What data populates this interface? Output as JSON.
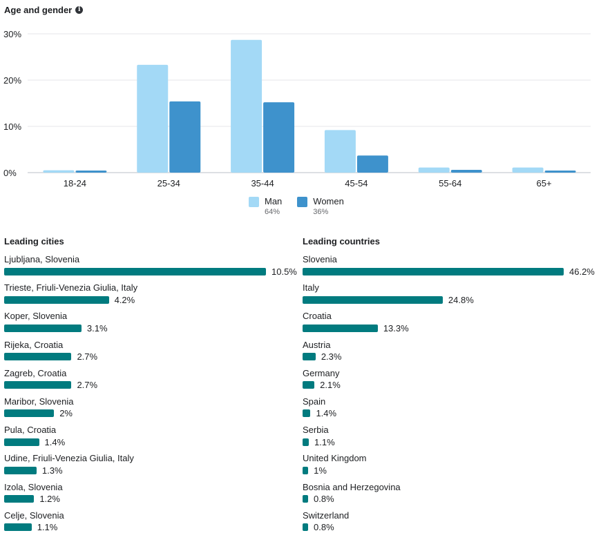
{
  "age_gender": {
    "title": "Age and gender",
    "info_icon": "info-icon",
    "legend": [
      {
        "label": "Man",
        "pct": "64%",
        "color": "#a3d9f6"
      },
      {
        "label": "Women",
        "pct": "36%",
        "color": "#3e92cc"
      }
    ]
  },
  "chart_data": [
    {
      "type": "bar",
      "title": "Age and gender",
      "categories": [
        "18-24",
        "25-34",
        "35-44",
        "45-54",
        "55-64",
        "65+"
      ],
      "series": [
        {
          "name": "Man",
          "values": [
            0.5,
            23.3,
            28.7,
            9.2,
            1.1,
            1.1
          ],
          "color": "#a3d9f6"
        },
        {
          "name": "Women",
          "values": [
            0.4,
            15.4,
            15.2,
            3.7,
            0.6,
            0.4
          ],
          "color": "#3e92cc"
        }
      ],
      "yticks": [
        "0%",
        "10%",
        "20%",
        "30%"
      ],
      "ytick_values": [
        0,
        10,
        20,
        30
      ],
      "ylim": [
        0,
        30
      ],
      "xlabel": "",
      "ylabel": "",
      "grid": true,
      "legend_position": "bottom"
    },
    {
      "type": "bar",
      "orientation": "horizontal",
      "title": "Leading cities",
      "categories": [
        "Ljubljana, Slovenia",
        "Trieste, Friuli-Venezia Giulia, Italy",
        "Koper, Slovenia",
        "Rijeka, Croatia",
        "Zagreb, Croatia",
        "Maribor, Slovenia",
        "Pula, Croatia",
        "Udine, Friuli-Venezia Giulia, Italy",
        "Izola, Slovenia",
        "Celje, Slovenia"
      ],
      "values": [
        10.5,
        4.2,
        3.1,
        2.7,
        2.7,
        2,
        1.4,
        1.3,
        1.2,
        1.1
      ],
      "labels": [
        "10.5%",
        "4.2%",
        "3.1%",
        "2.7%",
        "2.7%",
        "2%",
        "1.4%",
        "1.3%",
        "1.2%",
        "1.1%"
      ]
    },
    {
      "type": "bar",
      "orientation": "horizontal",
      "title": "Leading countries",
      "categories": [
        "Slovenia",
        "Italy",
        "Croatia",
        "Austria",
        "Germany",
        "Spain",
        "Serbia",
        "United Kingdom",
        "Bosnia and Herzegovina",
        "Switzerland"
      ],
      "values": [
        46.2,
        24.8,
        13.3,
        2.3,
        2.1,
        1.4,
        1.1,
        1,
        0.8,
        0.8
      ],
      "labels": [
        "46.2%",
        "24.8%",
        "13.3%",
        "2.3%",
        "2.1%",
        "1.4%",
        "1.1%",
        "1%",
        "0.8%",
        "0.8%"
      ]
    }
  ],
  "cities": {
    "title": "Leading cities",
    "bar_color": "#017b7f"
  },
  "countries": {
    "title": "Leading countries",
    "bar_color": "#017b7f"
  }
}
